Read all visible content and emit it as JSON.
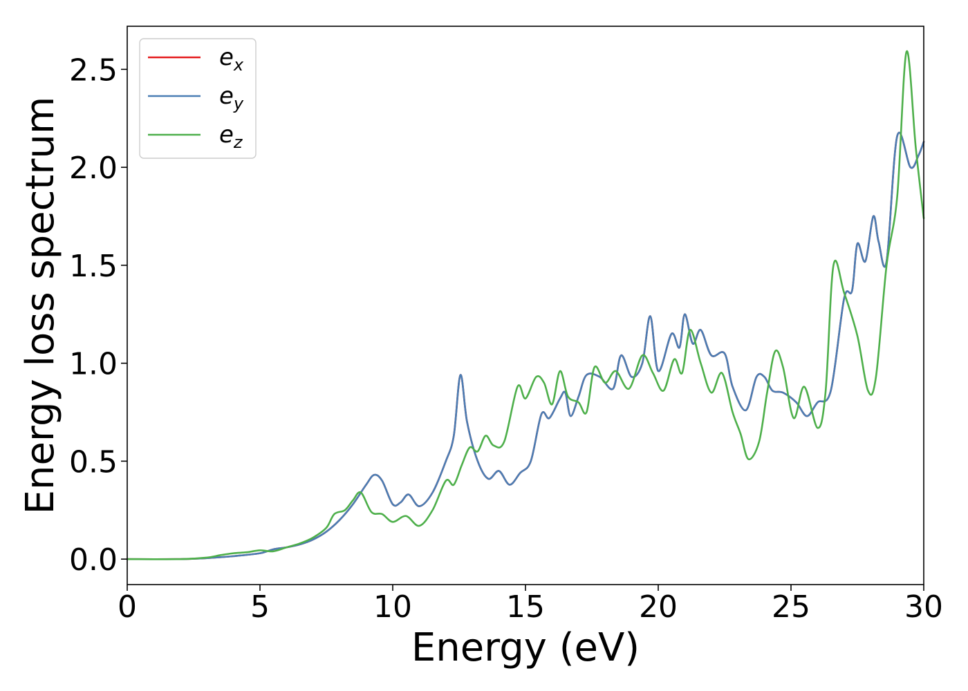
{
  "chart_data": {
    "type": "line",
    "title": "",
    "xlabel": "Energy (eV)",
    "ylabel": "Energy loss spectrum",
    "xlim": [
      0,
      30
    ],
    "ylim": [
      -0.13,
      2.72
    ],
    "xticks": [
      0,
      5,
      10,
      15,
      20,
      25,
      30
    ],
    "xtick_labels": [
      "0",
      "5",
      "10",
      "15",
      "20",
      "25",
      "30"
    ],
    "yticks": [
      0.0,
      0.5,
      1.0,
      1.5,
      2.0,
      2.5
    ],
    "ytick_labels": [
      "0.0",
      "0.5",
      "1.0",
      "1.5",
      "2.0",
      "2.5"
    ],
    "grid": false,
    "legend_position": "top-left",
    "series": [
      {
        "name": "e_x",
        "label_base": "e",
        "label_sub": "x",
        "color": "#e41a1c",
        "x": [
          0,
          2,
          3,
          4,
          5,
          5.5,
          6,
          6.5,
          7,
          7.5,
          8,
          8.5,
          9,
          9.3,
          9.6,
          10,
          10.3,
          10.6,
          11,
          11.5,
          12,
          12.3,
          12.55,
          12.8,
          13.2,
          13.6,
          14,
          14.4,
          14.8,
          15.2,
          15.6,
          15.9,
          16.3,
          16.5,
          16.7,
          17,
          17.3,
          17.8,
          18.3,
          18.6,
          19,
          19.4,
          19.7,
          20,
          20.5,
          20.8,
          21,
          21.3,
          21.6,
          22,
          22.5,
          22.8,
          23.3,
          23.7,
          24,
          24.3,
          24.7,
          25.2,
          25.6,
          26,
          26.5,
          27,
          27.3,
          27.5,
          27.8,
          28.1,
          28.3,
          28.6,
          29,
          29.5,
          29.8,
          30
        ],
        "y": [
          0,
          0.0,
          0.005,
          0.015,
          0.03,
          0.05,
          0.06,
          0.075,
          0.1,
          0.14,
          0.2,
          0.28,
          0.38,
          0.43,
          0.4,
          0.28,
          0.29,
          0.33,
          0.27,
          0.34,
          0.5,
          0.63,
          0.94,
          0.7,
          0.5,
          0.41,
          0.45,
          0.38,
          0.44,
          0.5,
          0.74,
          0.72,
          0.82,
          0.85,
          0.73,
          0.83,
          0.94,
          0.93,
          0.87,
          1.04,
          0.93,
          1.0,
          1.24,
          0.96,
          1.15,
          1.08,
          1.25,
          1.1,
          1.17,
          1.04,
          1.05,
          0.88,
          0.76,
          0.93,
          0.93,
          0.86,
          0.85,
          0.8,
          0.73,
          0.8,
          0.86,
          1.33,
          1.37,
          1.61,
          1.52,
          1.75,
          1.62,
          1.52,
          2.16,
          2.0,
          2.06,
          2.13
        ]
      },
      {
        "name": "e_y",
        "label_base": "e",
        "label_sub": "y",
        "color": "#4a7db3",
        "x": [
          0,
          2,
          3,
          4,
          5,
          5.5,
          6,
          6.5,
          7,
          7.5,
          8,
          8.5,
          9,
          9.3,
          9.6,
          10,
          10.3,
          10.6,
          11,
          11.5,
          12,
          12.3,
          12.55,
          12.8,
          13.2,
          13.6,
          14,
          14.4,
          14.8,
          15.2,
          15.6,
          15.9,
          16.3,
          16.5,
          16.7,
          17,
          17.3,
          17.8,
          18.3,
          18.6,
          19,
          19.4,
          19.7,
          20,
          20.5,
          20.8,
          21,
          21.3,
          21.6,
          22,
          22.5,
          22.8,
          23.3,
          23.7,
          24,
          24.3,
          24.7,
          25.2,
          25.6,
          26,
          26.5,
          27,
          27.3,
          27.5,
          27.8,
          28.1,
          28.3,
          28.6,
          29,
          29.5,
          29.8,
          30
        ],
        "y": [
          0,
          0.0,
          0.005,
          0.015,
          0.03,
          0.05,
          0.06,
          0.075,
          0.1,
          0.14,
          0.2,
          0.28,
          0.38,
          0.43,
          0.4,
          0.28,
          0.29,
          0.33,
          0.27,
          0.34,
          0.5,
          0.63,
          0.94,
          0.7,
          0.5,
          0.41,
          0.45,
          0.38,
          0.44,
          0.5,
          0.74,
          0.72,
          0.82,
          0.85,
          0.73,
          0.83,
          0.94,
          0.93,
          0.87,
          1.04,
          0.93,
          1.0,
          1.24,
          0.96,
          1.15,
          1.08,
          1.25,
          1.1,
          1.17,
          1.04,
          1.05,
          0.88,
          0.76,
          0.93,
          0.93,
          0.86,
          0.85,
          0.8,
          0.73,
          0.8,
          0.86,
          1.33,
          1.37,
          1.61,
          1.52,
          1.75,
          1.62,
          1.52,
          2.16,
          2.0,
          2.06,
          2.13
        ]
      },
      {
        "name": "e_z",
        "label_base": "e",
        "label_sub": "z",
        "color": "#4daf4a",
        "x": [
          0,
          2,
          3,
          3.5,
          4,
          4.5,
          5,
          5.5,
          6,
          6.5,
          7,
          7.5,
          7.8,
          8.2,
          8.5,
          8.8,
          9.2,
          9.6,
          10,
          10.5,
          11,
          11.5,
          12,
          12.3,
          12.6,
          12.9,
          13.2,
          13.5,
          13.8,
          14.2,
          14.7,
          15,
          15.4,
          15.7,
          16,
          16.3,
          16.6,
          17,
          17.3,
          17.6,
          18,
          18.4,
          18.9,
          19.4,
          19.8,
          20.2,
          20.6,
          20.9,
          21.2,
          21.6,
          22,
          22.4,
          22.8,
          23.1,
          23.4,
          23.8,
          24.1,
          24.4,
          24.7,
          25.1,
          25.5,
          26,
          26.3,
          26.6,
          27,
          27.5,
          27.9,
          28.2,
          28.6,
          29,
          29.35,
          29.7,
          30
        ],
        "y": [
          0,
          0.0,
          0.008,
          0.02,
          0.03,
          0.035,
          0.045,
          0.04,
          0.06,
          0.08,
          0.11,
          0.16,
          0.23,
          0.25,
          0.3,
          0.34,
          0.24,
          0.23,
          0.19,
          0.22,
          0.17,
          0.25,
          0.4,
          0.38,
          0.48,
          0.57,
          0.55,
          0.63,
          0.58,
          0.6,
          0.88,
          0.82,
          0.93,
          0.9,
          0.79,
          0.96,
          0.83,
          0.8,
          0.75,
          0.98,
          0.9,
          0.96,
          0.87,
          1.04,
          0.95,
          0.86,
          1.02,
          0.95,
          1.17,
          1.0,
          0.85,
          0.95,
          0.75,
          0.64,
          0.51,
          0.6,
          0.85,
          1.06,
          0.98,
          0.72,
          0.88,
          0.67,
          0.85,
          1.5,
          1.36,
          1.14,
          0.86,
          0.93,
          1.5,
          1.85,
          2.59,
          2.1,
          1.74
        ]
      }
    ]
  }
}
